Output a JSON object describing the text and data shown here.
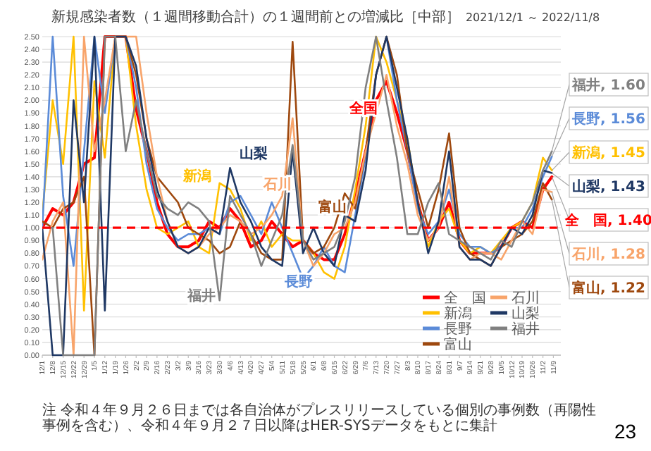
{
  "chart_data": {
    "type": "line",
    "title": "新規感染者数（１週間移動合計）の１週間前との増減比［中部］",
    "subtitle": "2021/12/1 ～ 2022/11/8",
    "x": [
      "2021-12-01",
      "2021-12-08",
      "2021-12-15",
      "2021-12-22",
      "2021-12-29",
      "2022-01-05",
      "2022-01-12",
      "2022-01-19",
      "2022-01-26",
      "2022-02-02",
      "2022-02-09",
      "2022-02-16",
      "2022-02-23",
      "2022-03-02",
      "2022-03-09",
      "2022-03-16",
      "2022-03-23",
      "2022-03-30",
      "2022-04-06",
      "2022-04-13",
      "2022-04-20",
      "2022-04-27",
      "2022-05-04",
      "2022-05-11",
      "2022-05-18",
      "2022-05-25",
      "2022-06-01",
      "2022-06-08",
      "2022-06-15",
      "2022-06-22",
      "2022-06-29",
      "2022-07-06",
      "2022-07-13",
      "2022-07-20",
      "2022-07-27",
      "2022-08-03",
      "2022-08-10",
      "2022-08-17",
      "2022-08-24",
      "2022-08-31",
      "2022-09-07",
      "2022-09-14",
      "2022-09-21",
      "2022-09-28",
      "2022-10-05",
      "2022-10-12",
      "2022-10-19",
      "2022-10-26",
      "2022-11-02",
      "2022-11-08"
    ],
    "series": [
      {
        "name": "全　国",
        "color": "#ff0000",
        "values": [
          1.0,
          1.15,
          1.1,
          1.2,
          1.5,
          1.55,
          2.5,
          2.5,
          2.5,
          1.93,
          1.6,
          1.2,
          0.95,
          0.85,
          0.85,
          0.9,
          1.05,
          1.0,
          1.15,
          1.05,
          0.85,
          0.9,
          1.05,
          0.95,
          0.85,
          0.9,
          0.8,
          0.75,
          0.75,
          0.95,
          1.25,
          1.6,
          2.0,
          2.15,
          1.9,
          1.6,
          1.2,
          0.9,
          1.0,
          1.2,
          0.9,
          0.8,
          0.8,
          0.8,
          0.85,
          1.0,
          1.05,
          1.0,
          1.3,
          1.4
        ],
        "value_labels": [
          null,
          null,
          null,
          null,
          null,
          null,
          null,
          null,
          null,
          null,
          null,
          null,
          null,
          null,
          null,
          null,
          null,
          null,
          null,
          null,
          null,
          null,
          null,
          null,
          null,
          null,
          null,
          null,
          null,
          null,
          null,
          null,
          null,
          null,
          null,
          null,
          null,
          null,
          null,
          null,
          null,
          null,
          null,
          null,
          null,
          null,
          null,
          null,
          null,
          "全　国, 1.40"
        ]
      },
      {
        "name": "新潟",
        "color": "#ffc000",
        "values": [
          1.1,
          2.0,
          1.5,
          2.5,
          0.35,
          2.15,
          1.55,
          2.5,
          2.5,
          1.8,
          1.3,
          1.0,
          0.95,
          1.0,
          1.05,
          0.85,
          0.8,
          1.35,
          1.3,
          1.15,
          0.9,
          1.05,
          0.85,
          0.95,
          0.9,
          0.9,
          0.8,
          0.65,
          0.6,
          0.85,
          1.3,
          1.8,
          2.5,
          2.3,
          2.0,
          1.7,
          1.2,
          0.85,
          1.05,
          1.15,
          0.9,
          0.8,
          0.85,
          0.8,
          0.9,
          1.0,
          1.05,
          1.2,
          1.55,
          1.45
        ],
        "value_labels": [
          null,
          null,
          null,
          null,
          null,
          null,
          null,
          null,
          null,
          null,
          null,
          null,
          null,
          null,
          null,
          null,
          null,
          null,
          null,
          null,
          null,
          null,
          null,
          null,
          null,
          null,
          null,
          null,
          null,
          null,
          null,
          null,
          null,
          null,
          null,
          null,
          null,
          null,
          null,
          null,
          null,
          null,
          null,
          null,
          null,
          null,
          null,
          null,
          null,
          "新潟, 1.45"
        ]
      },
      {
        "name": "長野",
        "color": "#5b8bd8",
        "values": [
          1.0,
          2.5,
          1.25,
          0.7,
          1.6,
          2.5,
          1.9,
          2.5,
          2.5,
          2.1,
          1.5,
          1.15,
          1.0,
          0.9,
          0.95,
          0.95,
          1.0,
          0.95,
          1.2,
          1.25,
          1.1,
          0.95,
          1.2,
          1.0,
          0.8,
          0.6,
          0.7,
          0.85,
          0.7,
          0.65,
          1.1,
          1.55,
          2.2,
          2.5,
          2.0,
          1.6,
          1.15,
          0.95,
          1.05,
          1.3,
          0.95,
          0.85,
          0.85,
          0.8,
          0.85,
          1.0,
          1.0,
          1.15,
          1.4,
          1.56
        ],
        "value_labels": [
          null,
          null,
          null,
          null,
          null,
          null,
          null,
          null,
          null,
          null,
          null,
          null,
          null,
          null,
          null,
          null,
          null,
          null,
          null,
          null,
          null,
          null,
          null,
          null,
          null,
          null,
          null,
          null,
          null,
          null,
          null,
          null,
          null,
          null,
          null,
          null,
          null,
          null,
          null,
          null,
          null,
          null,
          null,
          null,
          null,
          null,
          null,
          null,
          null,
          "長野, 1.56"
        ]
      },
      {
        "name": "富山",
        "color": "#9e480e",
        "values": [
          1.05,
          1.0,
          1.15,
          1.2,
          1.4,
          0.0,
          2.5,
          2.5,
          2.5,
          2.2,
          1.7,
          1.4,
          1.3,
          1.2,
          1.0,
          0.95,
          0.9,
          0.8,
          0.85,
          1.05,
          0.95,
          0.8,
          0.75,
          0.75,
          2.46,
          0.9,
          0.8,
          0.85,
          1.0,
          1.27,
          1.15,
          1.6,
          2.2,
          2.5,
          2.2,
          1.6,
          1.3,
          1.0,
          1.3,
          1.74,
          1.0,
          0.8,
          0.75,
          0.7,
          0.85,
          0.9,
          0.95,
          1.05,
          1.35,
          1.22
        ],
        "value_labels": [
          null,
          null,
          null,
          null,
          null,
          null,
          null,
          null,
          null,
          null,
          null,
          null,
          null,
          null,
          null,
          null,
          null,
          null,
          null,
          null,
          null,
          null,
          null,
          null,
          null,
          null,
          null,
          null,
          null,
          null,
          null,
          null,
          null,
          null,
          null,
          null,
          null,
          null,
          null,
          null,
          null,
          null,
          null,
          null,
          null,
          null,
          null,
          null,
          null,
          "富山, 1.22"
        ]
      },
      {
        "name": "石川",
        "color": "#f8a46a",
        "values": [
          0.75,
          1.05,
          1.2,
          0.0,
          2.5,
          1.6,
          2.0,
          2.5,
          2.5,
          2.5,
          1.9,
          1.4,
          1.05,
          0.85,
          0.8,
          0.85,
          0.95,
          1.0,
          1.1,
          1.05,
          0.95,
          1.0,
          1.1,
          1.25,
          1.86,
          0.9,
          0.7,
          0.8,
          0.95,
          1.0,
          1.2,
          1.6,
          1.9,
          2.2,
          1.8,
          1.5,
          1.1,
          0.9,
          1.0,
          1.4,
          0.85,
          0.75,
          0.8,
          0.8,
          0.75,
          0.9,
          1.05,
          0.95,
          1.3,
          1.28
        ],
        "value_labels": [
          null,
          null,
          null,
          null,
          null,
          null,
          null,
          null,
          null,
          null,
          null,
          null,
          null,
          null,
          null,
          null,
          null,
          null,
          null,
          null,
          null,
          null,
          null,
          null,
          null,
          null,
          null,
          null,
          null,
          null,
          null,
          null,
          null,
          null,
          null,
          null,
          null,
          null,
          null,
          null,
          null,
          null,
          null,
          null,
          null,
          null,
          null,
          null,
          null,
          "石川, 1.28"
        ]
      },
      {
        "name": "山梨",
        "color": "#1f3864",
        "values": [
          1.0,
          0.0,
          0.0,
          2.0,
          1.2,
          2.5,
          0.35,
          2.5,
          2.5,
          2.27,
          1.7,
          1.3,
          1.05,
          0.85,
          0.8,
          0.85,
          1.0,
          0.95,
          1.47,
          1.2,
          1.05,
          0.85,
          0.75,
          0.7,
          1.6,
          0.8,
          1.0,
          0.8,
          0.7,
          1.1,
          1.05,
          1.45,
          2.2,
          2.5,
          2.1,
          1.7,
          1.2,
          0.8,
          1.05,
          1.6,
          0.85,
          0.75,
          0.75,
          0.7,
          0.85,
          1.0,
          0.95,
          1.1,
          1.45,
          1.43
        ],
        "value_labels": [
          null,
          null,
          null,
          null,
          null,
          null,
          null,
          null,
          null,
          null,
          null,
          null,
          null,
          null,
          null,
          null,
          null,
          null,
          null,
          null,
          null,
          null,
          null,
          null,
          null,
          null,
          null,
          null,
          null,
          null,
          null,
          null,
          null,
          null,
          null,
          null,
          null,
          null,
          null,
          null,
          null,
          null,
          null,
          null,
          null,
          null,
          null,
          null,
          null,
          "山梨, 1.43"
        ]
      },
      {
        "name": "福井",
        "color": "#808080",
        "values": [
          1.0,
          1.0,
          0.0,
          0.0,
          0.0,
          0.0,
          2.5,
          2.5,
          1.6,
          2.0,
          1.6,
          1.25,
          1.15,
          1.1,
          1.2,
          1.15,
          1.05,
          0.43,
          1.25,
          1.1,
          0.95,
          0.7,
          0.9,
          1.1,
          1.65,
          0.9,
          0.75,
          0.8,
          0.85,
          1.05,
          1.4,
          2.1,
          2.5,
          2.0,
          1.55,
          0.95,
          0.95,
          1.2,
          1.35,
          0.95,
          0.9,
          0.85,
          0.8,
          0.75,
          0.9,
          0.85,
          1.05,
          1.2,
          1.45,
          1.6
        ],
        "value_labels": [
          null,
          null,
          null,
          null,
          null,
          null,
          null,
          null,
          null,
          null,
          null,
          null,
          null,
          null,
          null,
          null,
          null,
          null,
          null,
          null,
          null,
          null,
          null,
          null,
          null,
          null,
          null,
          null,
          null,
          null,
          null,
          null,
          null,
          null,
          null,
          null,
          null,
          null,
          null,
          null,
          null,
          null,
          null,
          null,
          null,
          null,
          null,
          null,
          null,
          "福井, 1.60"
        ]
      }
    ],
    "annotations": [
      "全国",
      "新潟",
      "長野",
      "富山",
      "石川",
      "山梨",
      "福井",
      "注 令和４年９月２６日までは各自治体がプレスリリースしている個別の事例数（再陽性事例を含む）、令和４年９月２７日以降はHER-SYSデータをもとに集計",
      "23"
    ],
    "xlim": [
      "2021-12-01",
      "2022-11-14"
    ],
    "xticks": [
      {
        "value": "2021-12-01",
        "label": "12/1"
      },
      {
        "value": "2021-12-08",
        "label": "12/8"
      },
      {
        "value": "2021-12-15",
        "label": "12/15"
      },
      {
        "value": "2021-12-22",
        "label": "12/22"
      },
      {
        "value": "2021-12-29",
        "label": "12/29"
      },
      {
        "value": "2022-01-05",
        "label": "1/5"
      },
      {
        "value": "2022-01-12",
        "label": "1/12"
      },
      {
        "value": "2022-01-19",
        "label": "1/19"
      },
      {
        "value": "2022-01-26",
        "label": "1/26"
      },
      {
        "value": "2022-02-02",
        "label": "2/2"
      },
      {
        "value": "2022-02-09",
        "label": "2/9"
      },
      {
        "value": "2022-02-16",
        "label": "2/16"
      },
      {
        "value": "2022-02-23",
        "label": "2/23"
      },
      {
        "value": "2022-03-02",
        "label": "3/2"
      },
      {
        "value": "2022-03-09",
        "label": "3/9"
      },
      {
        "value": "2022-03-16",
        "label": "3/16"
      },
      {
        "value": "2022-03-23",
        "label": "3/23"
      },
      {
        "value": "2022-03-30",
        "label": "3/30"
      },
      {
        "value": "2022-04-06",
        "label": "4/6"
      },
      {
        "value": "2022-04-13",
        "label": "4/13"
      },
      {
        "value": "2022-04-20",
        "label": "4/20"
      },
      {
        "value": "2022-04-27",
        "label": "4/27"
      },
      {
        "value": "2022-05-04",
        "label": "5/4"
      },
      {
        "value": "2022-05-11",
        "label": "5/11"
      },
      {
        "value": "2022-05-18",
        "label": "5/18"
      },
      {
        "value": "2022-05-25",
        "label": "5/25"
      },
      {
        "value": "2022-06-01",
        "label": "6/1"
      },
      {
        "value": "2022-06-08",
        "label": "6/8"
      },
      {
        "value": "2022-06-15",
        "label": "6/15"
      },
      {
        "value": "2022-06-22",
        "label": "6/22"
      },
      {
        "value": "2022-06-29",
        "label": "6/29"
      },
      {
        "value": "2022-07-06",
        "label": "7/6"
      },
      {
        "value": "2022-07-13",
        "label": "7/13"
      },
      {
        "value": "2022-07-20",
        "label": "7/20"
      },
      {
        "value": "2022-07-27",
        "label": "7/27"
      },
      {
        "value": "2022-08-03",
        "label": "8/3"
      },
      {
        "value": "2022-08-10",
        "label": "8/10"
      },
      {
        "value": "2022-08-17",
        "label": "8/17"
      },
      {
        "value": "2022-08-24",
        "label": "8/24"
      },
      {
        "value": "2022-08-31",
        "label": "8/31"
      },
      {
        "value": "2022-09-07",
        "label": "9/7"
      },
      {
        "value": "2022-09-14",
        "label": "9/14"
      },
      {
        "value": "2022-09-21",
        "label": "9/21"
      },
      {
        "value": "2022-09-28",
        "label": "9/28"
      },
      {
        "value": "2022-10-05",
        "label": "10/5"
      },
      {
        "value": "2022-10-12",
        "label": "10/12"
      },
      {
        "value": "2022-10-19",
        "label": "10/19"
      },
      {
        "value": "2022-10-26",
        "label": "10/26"
      },
      {
        "value": "2022-11-02",
        "label": "11/2"
      },
      {
        "value": "2022-11-09",
        "label": "11/9"
      }
    ],
    "ylim": [
      0,
      2.5
    ],
    "yticks": [
      {
        "value": 0,
        "label": "0.00"
      },
      {
        "value": 0.1,
        "label": "0.10"
      },
      {
        "value": 0.2,
        "label": "0.20"
      },
      {
        "value": 0.3,
        "label": "0.30"
      },
      {
        "value": 0.4,
        "label": "0.40"
      },
      {
        "value": 0.5,
        "label": "0.50"
      },
      {
        "value": 0.6,
        "label": "0.60"
      },
      {
        "value": 0.7,
        "label": "0.70"
      },
      {
        "value": 0.8,
        "label": "0.80"
      },
      {
        "value": 0.9,
        "label": "0.90"
      },
      {
        "value": 1,
        "label": "1.00"
      },
      {
        "value": 1.1,
        "label": "1.10"
      },
      {
        "value": 1.2,
        "label": "1.20"
      },
      {
        "value": 1.3,
        "label": "1.30"
      },
      {
        "value": 1.4,
        "label": "1.40"
      },
      {
        "value": 1.5,
        "label": "1.50"
      },
      {
        "value": 1.6,
        "label": "1.60"
      },
      {
        "value": 1.7,
        "label": "1.70"
      },
      {
        "value": 1.8,
        "label": "1.80"
      },
      {
        "value": 1.9,
        "label": "1.90"
      },
      {
        "value": 2,
        "label": "2.00"
      },
      {
        "value": 2.1,
        "label": "2.10"
      },
      {
        "value": 2.2,
        "label": "2.20"
      },
      {
        "value": 2.3,
        "label": "2.30"
      },
      {
        "value": 2.4,
        "label": "2.40"
      },
      {
        "value": 2.5,
        "label": "2.50"
      }
    ],
    "ref_lines": [
      {
        "axis": "y",
        "value": 1,
        "label": null,
        "color": "#ff0000",
        "line_style": "dashed"
      }
    ],
    "grid": "y",
    "legend": "bottom right",
    "marker": "none",
    "line_style": "solid"
  }
}
